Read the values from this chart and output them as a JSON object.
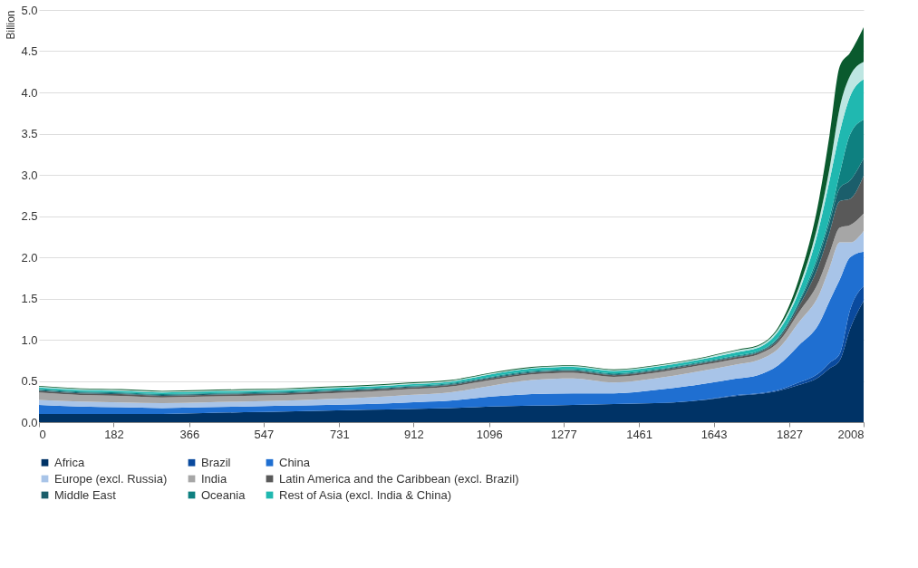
{
  "chart_data": {
    "type": "area",
    "stacked": true,
    "ylabel": "Billion",
    "x": [
      0,
      100,
      200,
      300,
      400,
      500,
      600,
      700,
      800,
      900,
      1000,
      1100,
      1200,
      1300,
      1400,
      1500,
      1600,
      1700,
      1750,
      1800,
      1850,
      1900,
      1925,
      1950,
      1975,
      2008
    ],
    "series": [
      {
        "name": "Africa",
        "color": "#003366",
        "values": [
          0.1,
          0.1,
          0.1,
          0.1,
          0.11,
          0.12,
          0.13,
          0.14,
          0.15,
          0.16,
          0.17,
          0.19,
          0.2,
          0.21,
          0.22,
          0.23,
          0.26,
          0.32,
          0.34,
          0.38,
          0.45,
          0.55,
          0.65,
          0.75,
          1.13,
          1.47
        ]
      },
      {
        "name": "Brazil",
        "color": "#0a4a9e",
        "values": [
          0.0,
          0.0,
          0.0,
          0.0,
          0.0,
          0.0,
          0.0,
          0.0,
          0.0,
          0.0,
          0.0,
          0.0,
          0.0,
          0.0,
          0.0,
          0.0,
          0.0,
          0.01,
          0.01,
          0.01,
          0.03,
          0.05,
          0.07,
          0.08,
          0.23,
          0.18
        ]
      },
      {
        "name": "China",
        "color": "#1f6fd1",
        "values": [
          0.11,
          0.09,
          0.08,
          0.07,
          0.07,
          0.07,
          0.07,
          0.07,
          0.07,
          0.08,
          0.09,
          0.12,
          0.14,
          0.14,
          0.13,
          0.16,
          0.19,
          0.2,
          0.22,
          0.3,
          0.45,
          0.6,
          0.75,
          0.9,
          0.64,
          0.42
        ]
      },
      {
        "name": "Europe (excl. Russia)",
        "color": "#a8c4e8",
        "values": [
          0.06,
          0.06,
          0.06,
          0.06,
          0.06,
          0.06,
          0.06,
          0.07,
          0.08,
          0.09,
          0.1,
          0.13,
          0.17,
          0.18,
          0.13,
          0.14,
          0.16,
          0.17,
          0.18,
          0.2,
          0.28,
          0.35,
          0.4,
          0.45,
          0.18,
          0.25
        ]
      },
      {
        "name": "India",
        "color": "#a6a6a6",
        "values": [
          0.09,
          0.08,
          0.08,
          0.07,
          0.07,
          0.07,
          0.07,
          0.07,
          0.07,
          0.07,
          0.07,
          0.07,
          0.07,
          0.07,
          0.07,
          0.07,
          0.07,
          0.07,
          0.07,
          0.08,
          0.12,
          0.17,
          0.18,
          0.18,
          0.21,
          0.21
        ]
      },
      {
        "name": "Latin America and the Caribbean (excl. Brazil)",
        "color": "#595959",
        "values": [
          0.02,
          0.02,
          0.02,
          0.02,
          0.02,
          0.02,
          0.02,
          0.02,
          0.02,
          0.02,
          0.02,
          0.02,
          0.02,
          0.02,
          0.02,
          0.02,
          0.02,
          0.02,
          0.02,
          0.03,
          0.07,
          0.2,
          0.25,
          0.32,
          0.32,
          0.46
        ]
      },
      {
        "name": "Middle East",
        "color": "#1b5e6b",
        "values": [
          0.01,
          0.01,
          0.01,
          0.01,
          0.01,
          0.01,
          0.01,
          0.01,
          0.01,
          0.01,
          0.01,
          0.01,
          0.01,
          0.01,
          0.01,
          0.01,
          0.01,
          0.01,
          0.01,
          0.02,
          0.04,
          0.1,
          0.12,
          0.16,
          0.22,
          0.21
        ]
      },
      {
        "name": "Oceania",
        "color": "#0e8080",
        "values": [
          0.01,
          0.01,
          0.01,
          0.01,
          0.01,
          0.01,
          0.01,
          0.01,
          0.01,
          0.01,
          0.01,
          0.01,
          0.01,
          0.01,
          0.01,
          0.01,
          0.01,
          0.01,
          0.01,
          0.01,
          0.02,
          0.05,
          0.06,
          0.18,
          0.56,
          0.47
        ]
      },
      {
        "name": "Rest of Asia (excl. India & China)",
        "color": "#20b8b0",
        "values": [
          0.02,
          0.02,
          0.02,
          0.02,
          0.02,
          0.02,
          0.02,
          0.02,
          0.02,
          0.02,
          0.02,
          0.03,
          0.03,
          0.03,
          0.03,
          0.03,
          0.03,
          0.04,
          0.04,
          0.07,
          0.12,
          0.3,
          0.45,
          0.5,
          0.46,
          0.49
        ]
      },
      {
        "color": "#bde6e2",
        "values": [
          0.01,
          0.01,
          0.01,
          0.01,
          0.01,
          0.01,
          0.01,
          0.01,
          0.01,
          0.01,
          0.01,
          0.01,
          0.01,
          0.01,
          0.01,
          0.01,
          0.01,
          0.02,
          0.02,
          0.03,
          0.05,
          0.1,
          0.15,
          0.3,
          0.25,
          0.21
        ]
      },
      {
        "color": "#0a5a2e",
        "values": [
          0.01,
          0.01,
          0.01,
          0.01,
          0.01,
          0.01,
          0.01,
          0.01,
          0.01,
          0.01,
          0.01,
          0.01,
          0.01,
          0.01,
          0.01,
          0.01,
          0.01,
          0.01,
          0.01,
          0.02,
          0.1,
          0.25,
          0.4,
          0.5,
          0.28,
          0.42
        ]
      }
    ],
    "xlim": [
      0,
      2008
    ],
    "xticks": [
      0,
      182,
      366,
      547,
      731,
      912,
      1096,
      1277,
      1461,
      1643,
      1827,
      2008
    ],
    "ylim": [
      0,
      5
    ],
    "yticks": [
      {
        "value": 0,
        "label": "0.0"
      },
      {
        "value": 0.5,
        "label": "0.5"
      },
      {
        "value": 1,
        "label": "1.0"
      },
      {
        "value": 1.5,
        "label": "1.5"
      },
      {
        "value": 2,
        "label": "2.0"
      },
      {
        "value": 2.5,
        "label": "2.5"
      },
      {
        "value": 3,
        "label": "3.0"
      },
      {
        "value": 3.5,
        "label": "3.5"
      },
      {
        "value": 4,
        "label": "4.0"
      },
      {
        "value": 4.5,
        "label": "4.5"
      },
      {
        "value": 5,
        "label": "5.0"
      }
    ],
    "grid": "y",
    "legend": "bottom"
  }
}
